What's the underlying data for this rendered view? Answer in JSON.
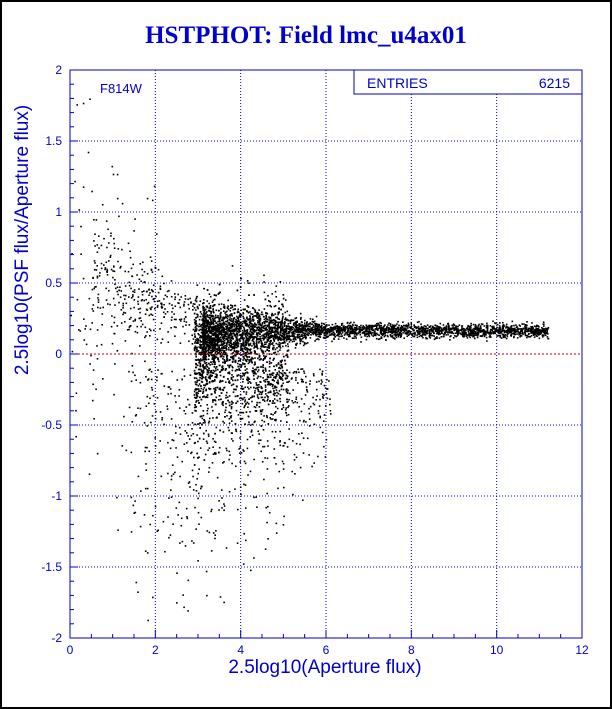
{
  "title": "HSTPHOT: Field lmc_u4ax01",
  "chart_data": {
    "type": "scatter",
    "title": "HSTPHOT: Field lmc_u4ax01",
    "xlabel": "2.5log10(Aperture flux)",
    "ylabel": "2.5log10(PSF flux/Aperture flux)",
    "xlim": [
      0,
      12
    ],
    "ylim": [
      -2,
      2
    ],
    "x_ticks": [
      0,
      2,
      4,
      6,
      8,
      10,
      12
    ],
    "y_ticks": [
      -2,
      -1.5,
      -1,
      -0.5,
      0,
      0.5,
      1,
      1.5,
      2
    ],
    "grid": true,
    "reference_line_y": 0,
    "annotation": "F814W",
    "stats": {
      "label": "ENTRIES",
      "value": "6215"
    },
    "entries": 6215,
    "colors": {
      "text": "#0000cc",
      "grid": "#0000cc",
      "points": "#000000",
      "reference_line": "#cc0000"
    },
    "density_profile": {
      "x": [
        0.0,
        1.0,
        2.0,
        2.5,
        3.0,
        3.1,
        3.3,
        3.6,
        4.0,
        4.5,
        5.0,
        5.5,
        6.0,
        6.5,
        7.0,
        7.5,
        8.0,
        8.5,
        9.0,
        9.5,
        10.0,
        10.5,
        11.0,
        11.3
      ],
      "y_median": [
        1.5,
        0.4,
        0.1,
        0.05,
        0.2,
        0.25,
        0.2,
        0.15,
        0.13,
        0.15,
        0.16,
        0.17,
        0.16,
        0.17,
        0.18,
        0.18,
        0.18,
        0.17,
        0.17,
        0.17,
        0.17,
        0.17,
        0.16,
        0.15
      ]
    }
  }
}
